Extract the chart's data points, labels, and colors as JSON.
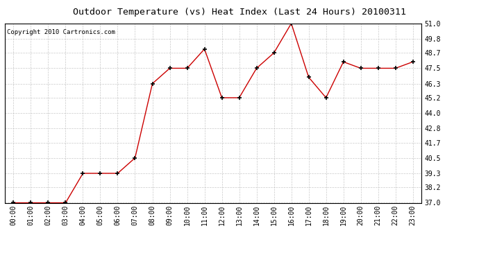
{
  "title": "Outdoor Temperature (vs) Heat Index (Last 24 Hours) 20100311",
  "copyright": "Copyright 2010 Cartronics.com",
  "x_labels": [
    "00:00",
    "01:00",
    "02:00",
    "03:00",
    "04:00",
    "05:00",
    "06:00",
    "07:00",
    "08:00",
    "09:00",
    "10:00",
    "11:00",
    "12:00",
    "13:00",
    "14:00",
    "15:00",
    "16:00",
    "17:00",
    "18:00",
    "19:00",
    "20:00",
    "21:00",
    "22:00",
    "23:00"
  ],
  "y_values": [
    37.0,
    37.0,
    37.0,
    37.0,
    39.3,
    39.3,
    39.3,
    40.5,
    46.3,
    47.5,
    47.5,
    49.0,
    45.2,
    45.2,
    47.5,
    48.7,
    51.0,
    46.8,
    45.2,
    48.0,
    47.5,
    47.5,
    47.5,
    48.0
  ],
  "line_color": "#cc0000",
  "marker": "+",
  "marker_size": 4,
  "marker_color": "#000000",
  "background_color": "#ffffff",
  "plot_bg_color": "#ffffff",
  "grid_color": "#bbbbbb",
  "ylim": [
    37.0,
    51.0
  ],
  "yticks": [
    37.0,
    38.2,
    39.3,
    40.5,
    41.7,
    42.8,
    44.0,
    45.2,
    46.3,
    47.5,
    48.7,
    49.8,
    51.0
  ],
  "title_fontsize": 9.5,
  "tick_fontsize": 7,
  "copyright_fontsize": 6.5
}
